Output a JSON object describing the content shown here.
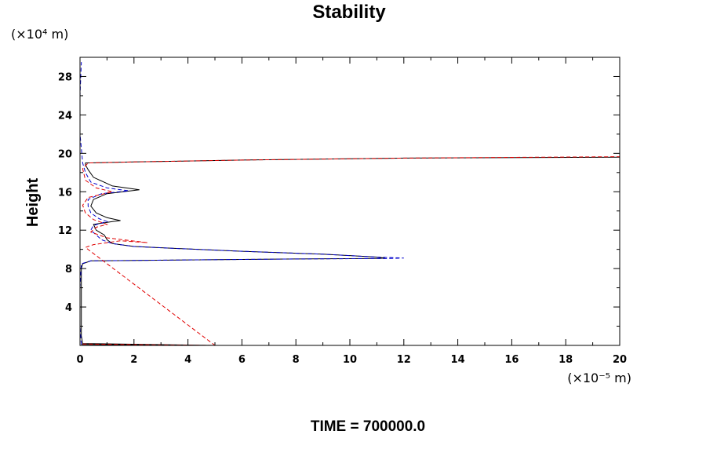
{
  "chart_data": {
    "type": "line",
    "title": "Stability",
    "ylabel": "Height",
    "y_unit": "(×10⁴ m)",
    "x_unit": "(×10⁻⁵ m)",
    "footer": "TIME = 700000.0",
    "xlim": [
      0,
      20
    ],
    "ylim": [
      0,
      30
    ],
    "x_ticks": [
      0,
      2,
      4,
      6,
      8,
      10,
      12,
      14,
      16,
      18,
      20
    ],
    "y_ticks": [
      4,
      8,
      12,
      16,
      20,
      24,
      28
    ],
    "grid": false,
    "series": [
      {
        "color": "#000000",
        "dash": "solid",
        "points": [
          [
            0.05,
            0.1
          ],
          [
            5.0,
            0.0
          ],
          [
            0.1,
            0.2
          ],
          [
            0.05,
            1.0
          ],
          [
            0.05,
            4.0
          ],
          [
            0.05,
            8.0
          ],
          [
            0.1,
            8.5
          ],
          [
            0.4,
            8.8
          ],
          [
            4.0,
            8.9
          ],
          [
            8.0,
            9.0
          ],
          [
            11.0,
            9.05
          ],
          [
            11.3,
            9.1
          ],
          [
            11.0,
            9.2
          ],
          [
            9.0,
            9.5
          ],
          [
            6.0,
            9.8
          ],
          [
            3.5,
            10.1
          ],
          [
            2.0,
            10.3
          ],
          [
            1.2,
            10.6
          ],
          [
            1.0,
            11.0
          ],
          [
            0.9,
            11.5
          ],
          [
            0.6,
            12.0
          ],
          [
            0.5,
            12.6
          ],
          [
            1.2,
            12.9
          ],
          [
            1.5,
            13.0
          ],
          [
            1.0,
            13.3
          ],
          [
            0.6,
            13.8
          ],
          [
            0.4,
            14.5
          ],
          [
            0.5,
            15.2
          ],
          [
            1.0,
            15.8
          ],
          [
            2.2,
            16.2
          ],
          [
            1.2,
            16.6
          ],
          [
            0.5,
            17.5
          ],
          [
            0.3,
            18.3
          ],
          [
            0.2,
            18.8
          ],
          [
            0.2,
            19.0
          ],
          [
            2.0,
            19.1
          ],
          [
            6.0,
            19.3
          ],
          [
            12.0,
            19.5
          ],
          [
            20.0,
            19.6
          ]
        ]
      },
      {
        "color": "#0000cc",
        "dash": "dashed",
        "points": [
          [
            0.05,
            0.1
          ],
          [
            0.0,
            2.0
          ],
          [
            0.0,
            6.0
          ],
          [
            0.05,
            8.5
          ],
          [
            0.4,
            8.8
          ],
          [
            4.0,
            8.9
          ],
          [
            8.0,
            9.0
          ],
          [
            11.5,
            9.05
          ],
          [
            12.0,
            9.1
          ],
          [
            11.0,
            9.2
          ],
          [
            9.0,
            9.5
          ],
          [
            6.0,
            9.8
          ],
          [
            3.5,
            10.1
          ],
          [
            2.0,
            10.3
          ],
          [
            1.2,
            10.6
          ],
          [
            0.8,
            11.0
          ],
          [
            0.6,
            11.5
          ],
          [
            0.4,
            12.0
          ],
          [
            0.5,
            12.5
          ],
          [
            1.0,
            12.9
          ],
          [
            0.7,
            13.2
          ],
          [
            0.4,
            13.8
          ],
          [
            0.3,
            14.5
          ],
          [
            0.3,
            15.2
          ],
          [
            0.8,
            15.8
          ],
          [
            1.8,
            16.1
          ],
          [
            1.0,
            16.4
          ],
          [
            0.4,
            17.0
          ],
          [
            0.2,
            18.0
          ],
          [
            0.1,
            19.0
          ],
          [
            0.0,
            22.0
          ],
          [
            0.0,
            26.0
          ],
          [
            0.05,
            29.5
          ]
        ]
      },
      {
        "color": "#e00000",
        "dash": "dashed",
        "points": [
          [
            0.1,
            0.15
          ],
          [
            3.0,
            0.05
          ],
          [
            5.0,
            0.0
          ],
          [
            0.2,
            10.2
          ],
          [
            0.5,
            10.5
          ],
          [
            1.5,
            10.9
          ],
          [
            2.5,
            10.7
          ],
          [
            1.0,
            11.2
          ],
          [
            0.4,
            11.8
          ],
          [
            0.6,
            12.3
          ],
          [
            1.0,
            12.6
          ],
          [
            0.5,
            13.1
          ],
          [
            0.2,
            13.8
          ],
          [
            0.1,
            14.6
          ],
          [
            0.3,
            15.4
          ],
          [
            1.2,
            16.0
          ],
          [
            0.6,
            16.4
          ],
          [
            0.2,
            17.2
          ],
          [
            0.1,
            18.4
          ],
          [
            0.3,
            19.0
          ],
          [
            2.0,
            19.1
          ],
          [
            6.0,
            19.3
          ],
          [
            12.0,
            19.5
          ],
          [
            20.0,
            19.65
          ]
        ]
      }
    ]
  }
}
